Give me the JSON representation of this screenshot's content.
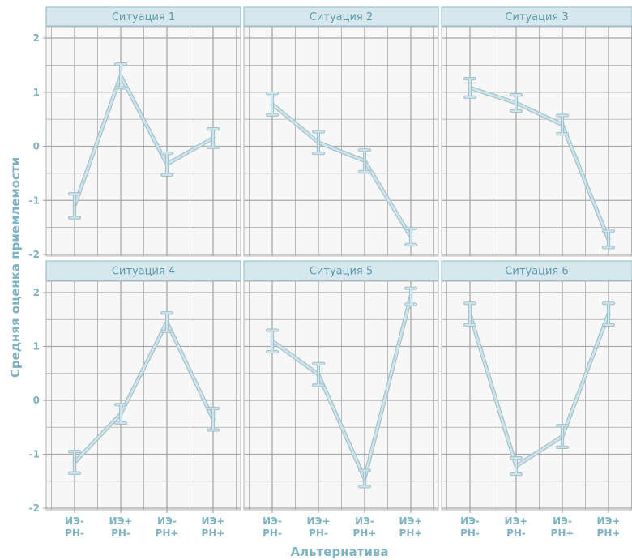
{
  "chart_data": {
    "type": "line",
    "xlabel": "Альтернатива",
    "ylabel": "Средняя оценка приемлемости",
    "ylim": [
      -2,
      2
    ],
    "yticks": [
      -2,
      -1,
      0,
      1,
      2
    ],
    "categories": [
      [
        "ИЭ-",
        "РН-"
      ],
      [
        "ИЭ+",
        "РН-"
      ],
      [
        "ИЭ-",
        "РН+"
      ],
      [
        "ИЭ+",
        "РН+"
      ]
    ],
    "panels": [
      {
        "title": "Ситуация 1",
        "values": [
          -1.1,
          1.3,
          -0.33,
          0.15
        ],
        "err": [
          0.22,
          0.22,
          0.2,
          0.17
        ]
      },
      {
        "title": "Ситуация 2",
        "values": [
          0.78,
          0.07,
          -0.27,
          -1.67
        ],
        "err": [
          0.2,
          0.2,
          0.2,
          0.15
        ]
      },
      {
        "title": "Ситуация 3",
        "values": [
          1.08,
          0.8,
          0.4,
          -1.72
        ],
        "err": [
          0.17,
          0.15,
          0.17,
          0.15
        ]
      },
      {
        "title": "Ситуация 4",
        "values": [
          -1.15,
          -0.25,
          1.45,
          -0.35
        ],
        "err": [
          0.2,
          0.17,
          0.17,
          0.2
        ]
      },
      {
        "title": "Ситуация 5",
        "values": [
          1.1,
          0.48,
          -1.45,
          1.93
        ],
        "err": [
          0.2,
          0.2,
          0.15,
          0.15
        ]
      },
      {
        "title": "Ситуация 6",
        "values": [
          1.6,
          -1.22,
          -0.67,
          1.6
        ],
        "err": [
          0.2,
          0.15,
          0.2,
          0.2
        ]
      }
    ],
    "colors": {
      "line": "#cfe3e9",
      "line_outline": "#a3c4cf",
      "strip_fill": "#d6e8ee",
      "strip_border": "#9ec3cf",
      "grid": "#a9a9a9",
      "panel_bg": "#f7f7f7"
    }
  }
}
